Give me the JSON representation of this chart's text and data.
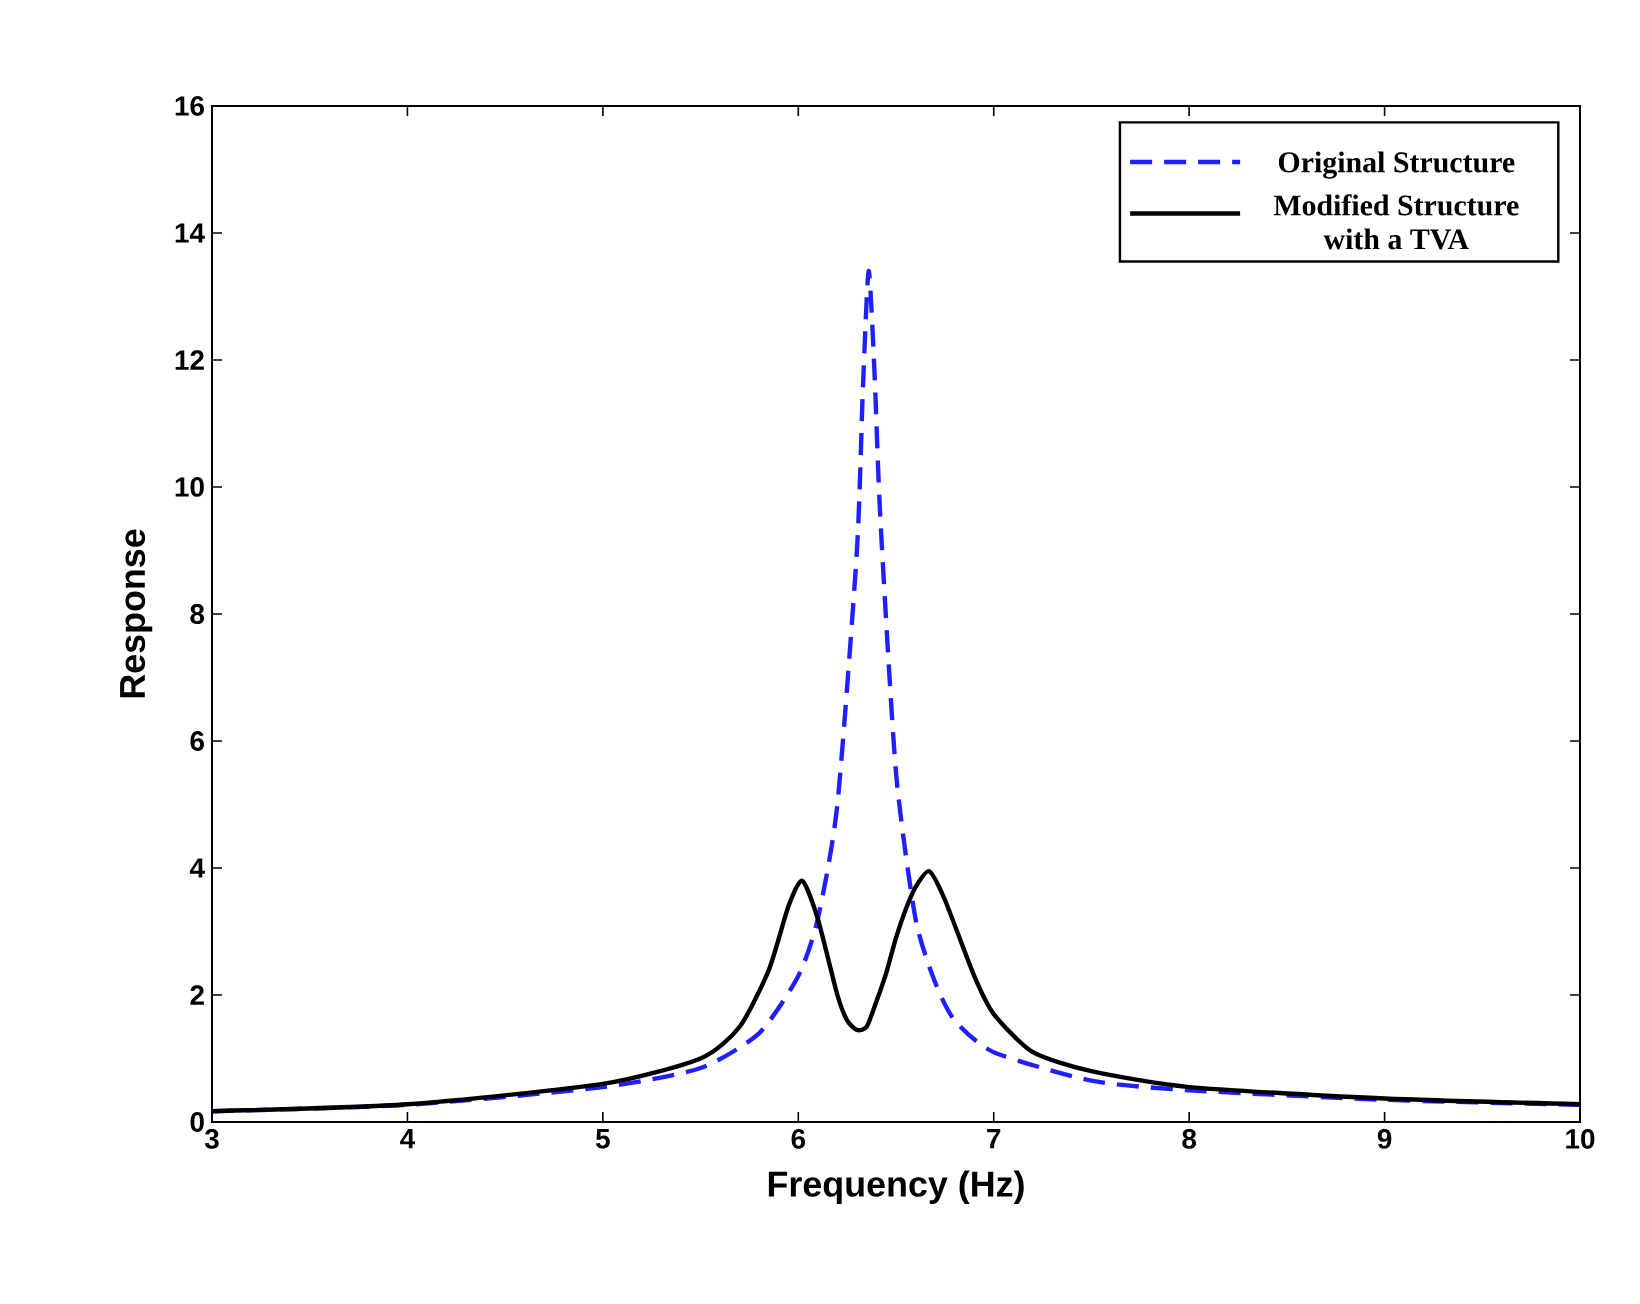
{
  "chart_data": {
    "type": "line",
    "xlabel": "Frequency (Hz)",
    "ylabel": "Response",
    "xlim": [
      3,
      10
    ],
    "ylim": [
      0,
      16
    ],
    "xticks": [
      3,
      4,
      5,
      6,
      7,
      8,
      9,
      10
    ],
    "yticks": [
      0,
      2,
      4,
      6,
      8,
      10,
      12,
      14,
      16
    ],
    "legend": "top right",
    "grid": false,
    "marker": "none",
    "series": [
      {
        "name": "Original Structure",
        "color": "#1f1fff",
        "line_style": "dashed",
        "x": [
          3,
          4,
          5,
          5.5,
          5.8,
          6.0,
          6.1,
          6.2,
          6.3,
          6.33,
          6.36,
          6.39,
          6.42,
          6.5,
          6.6,
          6.7,
          6.8,
          7.0,
          7.5,
          8,
          9,
          10
        ],
        "values": [
          0.17,
          0.27,
          0.55,
          0.85,
          1.4,
          2.3,
          3.2,
          5.0,
          9.0,
          11.5,
          13.4,
          11.8,
          9.5,
          5.5,
          3.2,
          2.2,
          1.6,
          1.1,
          0.65,
          0.5,
          0.35,
          0.27
        ]
      },
      {
        "name": "Modified Structure with a TVA",
        "color": "#000000",
        "line_style": "solid",
        "x": [
          3,
          4,
          5,
          5.5,
          5.7,
          5.85,
          5.95,
          6.02,
          6.1,
          6.2,
          6.25,
          6.3,
          6.35,
          6.4,
          6.45,
          6.5,
          6.55,
          6.6,
          6.67,
          6.75,
          6.9,
          7.0,
          7.2,
          7.5,
          8,
          9,
          10
        ],
        "values": [
          0.17,
          0.28,
          0.6,
          1.0,
          1.5,
          2.4,
          3.4,
          3.8,
          3.2,
          2.0,
          1.6,
          1.45,
          1.5,
          1.9,
          2.35,
          2.9,
          3.35,
          3.7,
          3.95,
          3.5,
          2.3,
          1.7,
          1.1,
          0.8,
          0.55,
          0.37,
          0.28
        ]
      }
    ]
  }
}
